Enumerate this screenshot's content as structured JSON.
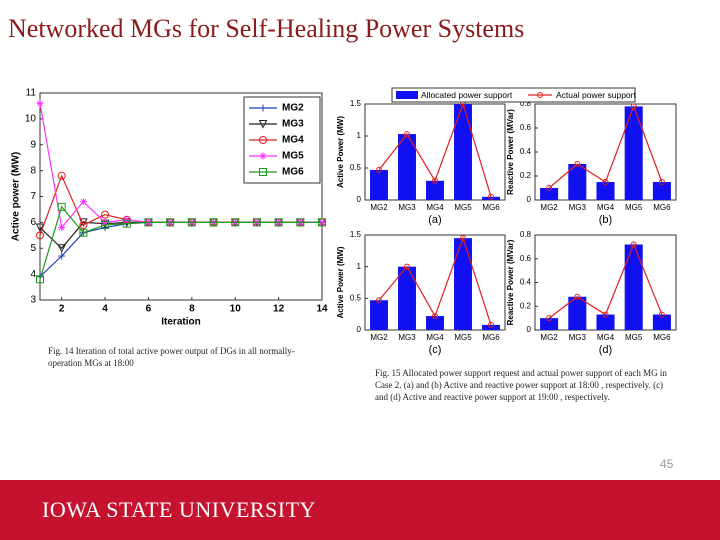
{
  "slide": {
    "title": "Networked MGs for Self-Healing Power Systems",
    "page_number": "45",
    "footer": "IOWA STATE UNIVERSITY"
  },
  "captions": [
    "Fig. 14 Iteration of total active power output of DGs in all normally-operation MGs at 18:00",
    "Fig. 15 Allocated power support request and actual power support of each MG in Case 2. (a) and (b) Active and reactive power support at 18:00 , respectively. (c) and (d) Active and reactive power support at 19:00 , respectively."
  ],
  "chart_data": [
    {
      "type": "line",
      "x_label": "Iteration",
      "y_label": "Active power (MW)",
      "x": [
        1,
        2,
        3,
        4,
        5,
        6,
        7,
        8,
        9,
        10,
        11,
        12,
        13,
        14
      ],
      "xlim": [
        1,
        14
      ],
      "xticks": [
        2,
        4,
        6,
        8,
        10,
        12,
        14
      ],
      "ylim": [
        3,
        11
      ],
      "yticks": [
        3,
        4,
        5,
        6,
        7,
        8,
        9,
        10,
        11
      ],
      "legend": "upper right",
      "series": [
        {
          "name": "MG2",
          "color": "#1f3fbf",
          "marker": "plus",
          "values": [
            3.9,
            4.7,
            5.6,
            5.8,
            5.95,
            6,
            6,
            6,
            6,
            6,
            6,
            6,
            6,
            6
          ]
        },
        {
          "name": "MG3",
          "color": "#222222",
          "marker": "triangle",
          "values": [
            5.8,
            5.0,
            6.0,
            5.95,
            6,
            6,
            6,
            6,
            6,
            6,
            6,
            6,
            6,
            6
          ]
        },
        {
          "name": "MG4",
          "color": "#e02020",
          "marker": "circle",
          "values": [
            5.5,
            7.8,
            5.9,
            6.3,
            6.1,
            6,
            6,
            6,
            6,
            6,
            6,
            6,
            6,
            6
          ]
        },
        {
          "name": "MG5",
          "color": "#ff33ff",
          "marker": "star",
          "values": [
            10.6,
            5.8,
            6.8,
            6.0,
            6.1,
            6,
            6,
            6,
            6,
            6,
            6,
            6,
            6,
            6
          ]
        },
        {
          "name": "MG6",
          "color": "#1a9a1a",
          "marker": "square",
          "values": [
            3.8,
            6.6,
            5.6,
            5.9,
            5.95,
            6,
            6,
            6,
            6,
            6,
            6,
            6,
            6,
            6
          ]
        }
      ]
    },
    {
      "type": "combo",
      "label": "(a)",
      "y_label": "Active Power (MW)",
      "categories": [
        "MG2",
        "MG3",
        "MG4",
        "MG5",
        "MG6"
      ],
      "ylim": [
        0,
        1.5
      ],
      "yticks": [
        0,
        0.5,
        1,
        1.5
      ],
      "series": [
        {
          "name": "Allocated power support",
          "color": "#1010f0",
          "values": [
            0.47,
            1.03,
            0.3,
            1.5,
            0.05
          ]
        },
        {
          "name": "Actual power support",
          "color": "#e02020",
          "values": [
            0.47,
            1.03,
            0.3,
            1.5,
            0.05
          ]
        }
      ]
    },
    {
      "type": "combo",
      "label": "(b)",
      "y_label": "Reactive Power (MVar)",
      "categories": [
        "MG2",
        "MG3",
        "MG4",
        "MG5",
        "MG6"
      ],
      "ylim": [
        0,
        0.8
      ],
      "yticks": [
        0,
        0.2,
        0.4,
        0.6,
        0.8
      ],
      "series": [
        {
          "color": "#1010f0",
          "values": [
            0.1,
            0.3,
            0.15,
            0.78,
            0.15
          ]
        },
        {
          "color": "#e02020",
          "values": [
            0.1,
            0.3,
            0.15,
            0.78,
            0.15
          ]
        }
      ]
    },
    {
      "type": "combo",
      "label": "(c)",
      "y_label": "Active Power (MW)",
      "categories": [
        "MG2",
        "MG3",
        "MG4",
        "MG5",
        "MG6"
      ],
      "ylim": [
        0,
        1.5
      ],
      "yticks": [
        0,
        0.5,
        1,
        1.5
      ],
      "series": [
        {
          "color": "#1010f0",
          "values": [
            0.47,
            1.0,
            0.22,
            1.45,
            0.08
          ]
        },
        {
          "color": "#e02020",
          "values": [
            0.47,
            1.0,
            0.22,
            1.45,
            0.08
          ]
        }
      ]
    },
    {
      "type": "combo",
      "label": "(d)",
      "y_label": "Reactive Power (MVar)",
      "categories": [
        "MG2",
        "MG3",
        "MG4",
        "MG5",
        "MG6"
      ],
      "ylim": [
        0,
        0.8
      ],
      "yticks": [
        0,
        0.2,
        0.4,
        0.6,
        0.8
      ],
      "series": [
        {
          "color": "#1010f0",
          "values": [
            0.1,
            0.28,
            0.13,
            0.72,
            0.13
          ]
        },
        {
          "color": "#e02020",
          "values": [
            0.1,
            0.28,
            0.13,
            0.72,
            0.13
          ]
        }
      ]
    }
  ]
}
